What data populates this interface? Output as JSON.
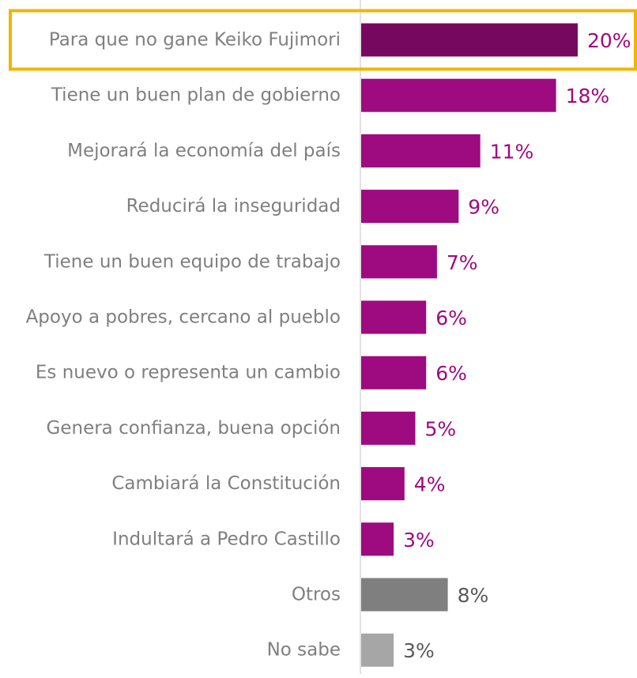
{
  "chart_data": {
    "type": "bar",
    "orientation": "horizontal",
    "categories": [
      "Para que no gane Keiko Fujimori",
      "Tiene un buen plan de gobierno",
      "Mejorará la economía del país",
      "Reducirá la inseguridad",
      "Tiene un buen equipo de trabajo",
      "Apoyo a pobres, cercano al pueblo",
      "Es nuevo o representa un cambio",
      "Genera confianza, buena opción",
      "Cambiará la Constitución",
      "Indultará a Pedro Castillo",
      "Otros",
      "No sabe"
    ],
    "values": [
      20,
      18,
      11,
      9,
      7,
      6,
      6,
      5,
      4,
      3,
      8,
      3
    ],
    "value_labels": [
      "20%",
      "18%",
      "11%",
      "9%",
      "7%",
      "6%",
      "6%",
      "5%",
      "4%",
      "3%",
      "8%",
      "3%"
    ],
    "bar_colors": [
      "#76085f",
      "#9e0a7f",
      "#9e0a7f",
      "#9e0a7f",
      "#9e0a7f",
      "#9e0a7f",
      "#9e0a7f",
      "#9e0a7f",
      "#9e0a7f",
      "#9e0a7f",
      "#7f7f7f",
      "#a6a6a6"
    ],
    "label_colors": [
      "#9e0a7f",
      "#9e0a7f",
      "#9e0a7f",
      "#9e0a7f",
      "#9e0a7f",
      "#9e0a7f",
      "#9e0a7f",
      "#9e0a7f",
      "#9e0a7f",
      "#9e0a7f",
      "#595959",
      "#595959"
    ],
    "highlight_index": 0,
    "highlight_color": "#f2b400",
    "category_text_color": "#7f7f7f",
    "axis_line_color": "#d9d9d9",
    "xlim": [
      0,
      20
    ],
    "grid": false,
    "legend": "none"
  }
}
